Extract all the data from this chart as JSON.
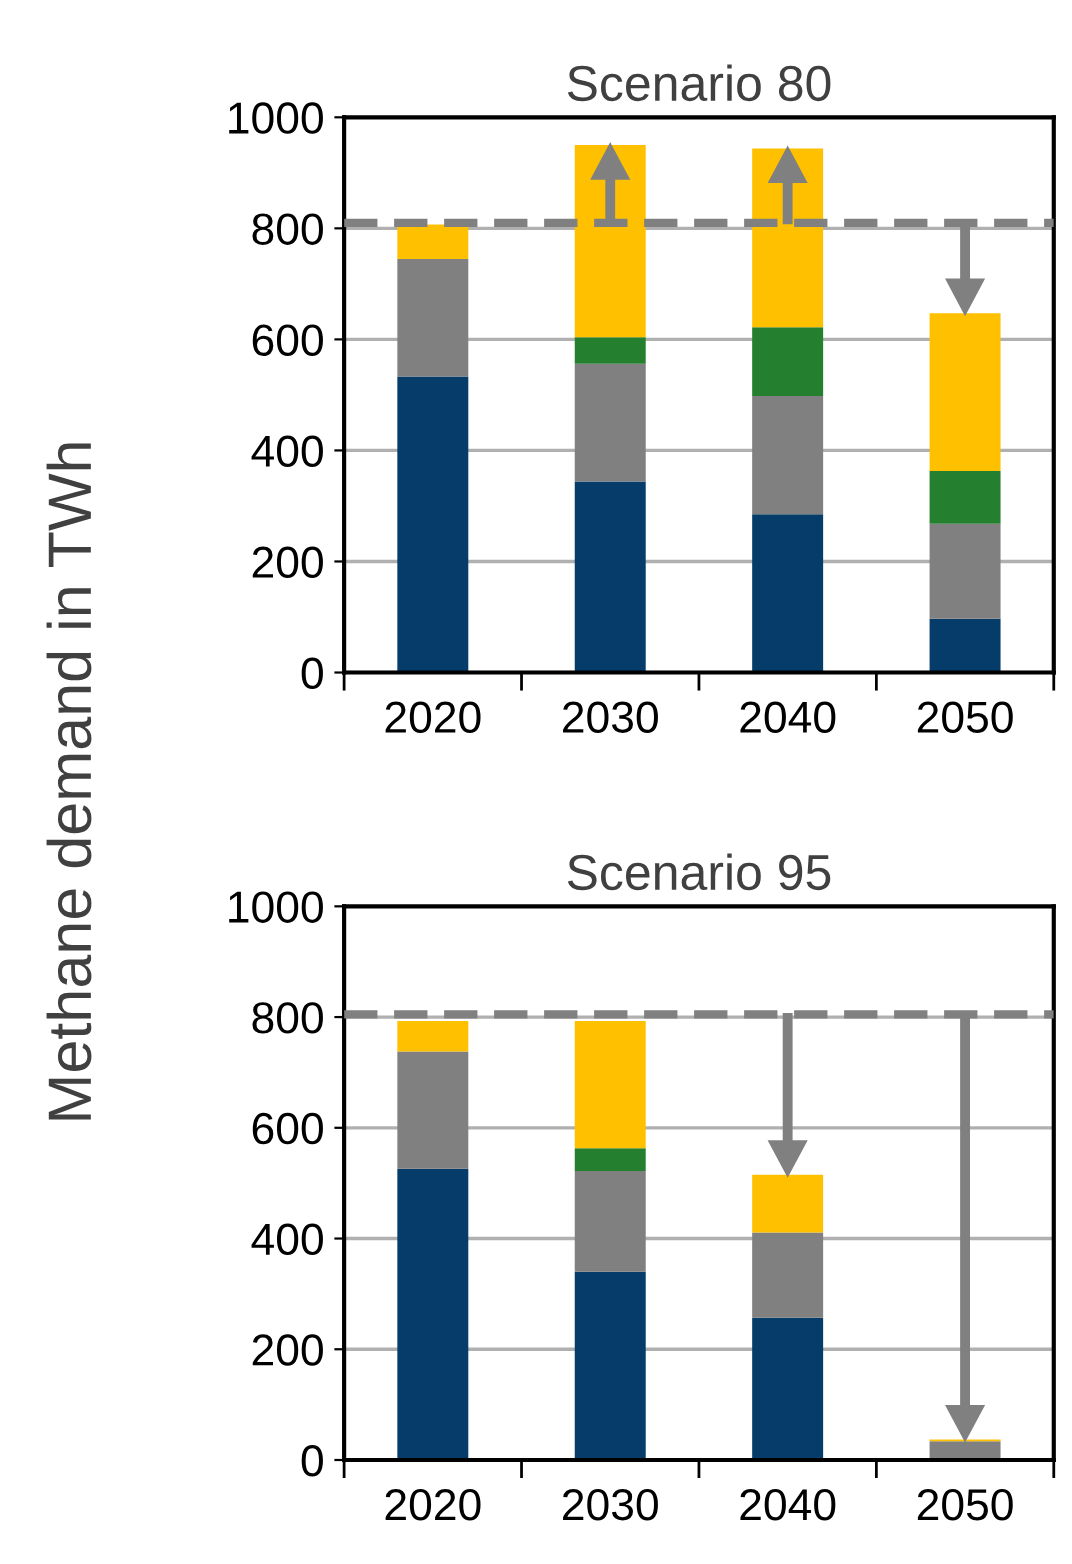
{
  "chart_data": [
    {
      "type": "bar",
      "title": "Scenario 80",
      "ylabel": "Methane demand in TWh",
      "categories": [
        "2020",
        "2030",
        "2040",
        "2050"
      ],
      "stacked": true,
      "grid": "y",
      "legend": false,
      "ylim": [
        0,
        1000
      ],
      "yticks": [
        0,
        200,
        400,
        600,
        800,
        1000
      ],
      "series": [
        {
          "color": "#053c69",
          "values": [
            533,
            344,
            285,
            97
          ]
        },
        {
          "color": "#808080",
          "values": [
            212,
            212,
            213,
            171
          ]
        },
        {
          "color": "#247f2f",
          "values": [
            0,
            48,
            124,
            95
          ]
        },
        {
          "color": "#ffc000",
          "values": [
            62,
            346,
            322,
            284
          ]
        }
      ],
      "ref_lines": [
        {
          "axis": "y",
          "value": 810,
          "color": "#808080",
          "line_style": "dashed"
        }
      ]
    },
    {
      "type": "bar",
      "title": "Scenario 95",
      "categories": [
        "2020",
        "2030",
        "2040",
        "2050"
      ],
      "stacked": true,
      "grid": "y",
      "legend": false,
      "ylim": [
        0,
        1000
      ],
      "yticks": [
        0,
        200,
        400,
        600,
        800,
        1000
      ],
      "series": [
        {
          "color": "#053c69",
          "values": [
            526,
            340,
            257,
            0
          ]
        },
        {
          "color": "#808080",
          "values": [
            212,
            182,
            154,
            34
          ]
        },
        {
          "color": "#247f2f",
          "values": [
            0,
            41,
            0,
            0
          ]
        },
        {
          "color": "#ffc000",
          "values": [
            55,
            230,
            104,
            3
          ]
        }
      ],
      "ref_lines": [
        {
          "axis": "y",
          "value": 805,
          "color": "#808080",
          "line_style": "dashed"
        }
      ]
    }
  ]
}
